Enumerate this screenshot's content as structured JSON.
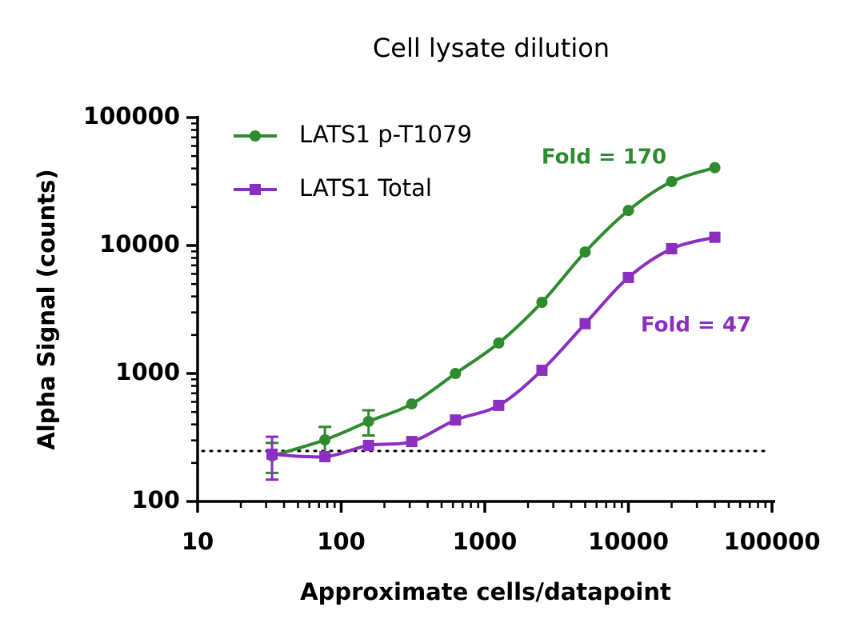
{
  "chart_data": {
    "type": "scatter",
    "title": "Cell lysate dilution",
    "x_label": "Approximate cells/datapoint",
    "y_label": "Alpha Signal (counts)",
    "log_x": true,
    "log_y": true,
    "xlim": [
      10,
      100000
    ],
    "ylim": [
      100,
      100000
    ],
    "xticks": [
      10,
      100,
      1000,
      10000,
      100000
    ],
    "yticks": [
      100,
      1000,
      10000,
      100000
    ],
    "x": [
      33,
      77,
      155,
      310,
      625,
      1250,
      2500,
      5000,
      10000,
      20000,
      40000
    ],
    "series": [
      {
        "name": "LATS1 p-T1079",
        "color": "#2e8b2e",
        "marker": "circle",
        "values": [
          227,
          303,
          422,
          578,
          1000,
          1730,
          3600,
          8900,
          18800,
          31600,
          40600
        ],
        "errors": [
          60,
          80,
          94,
          null,
          null,
          null,
          null,
          null,
          null,
          null,
          null
        ]
      },
      {
        "name": "LATS1 Total",
        "color": "#8b2fc0",
        "marker": "square",
        "values": [
          234,
          224,
          274,
          294,
          433,
          563,
          1060,
          2450,
          5630,
          9440,
          11600
        ],
        "errors": [
          86,
          null,
          null,
          null,
          null,
          null,
          null,
          null,
          null,
          null,
          null
        ]
      }
    ],
    "reference_line": 248,
    "annotations": [
      {
        "text": "Fold = 170",
        "color": "#2e8b2e"
      },
      {
        "text": "Fold = 47",
        "color": "#8b2fc0"
      }
    ],
    "legend": "upper left"
  }
}
